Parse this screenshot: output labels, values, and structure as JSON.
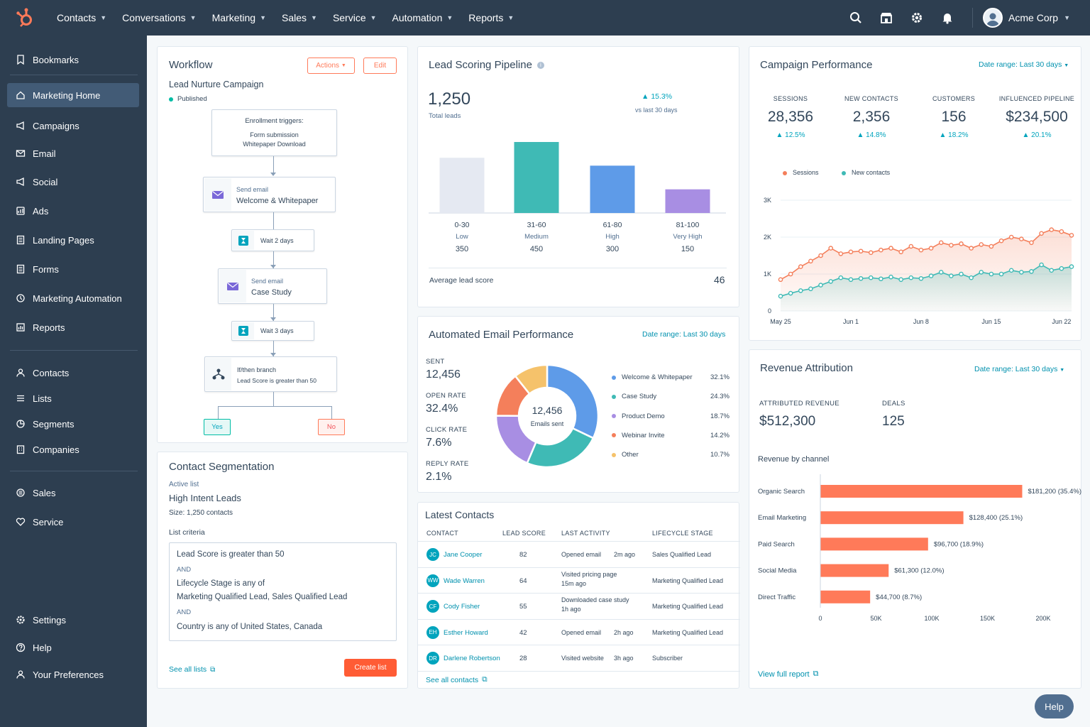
{
  "nav": {
    "items": [
      "Contacts",
      "Conversations",
      "Marketing",
      "Sales",
      "Service",
      "Automation",
      "Reports"
    ],
    "account": "Acme Corp",
    "icons": [
      "search-icon",
      "marketplace-icon",
      "settings-gear-icon",
      "notifications-bell-icon"
    ]
  },
  "sidebar": {
    "bookmarks": "Bookmarks",
    "marketing_items": [
      "Marketing Home",
      "Campaigns",
      "Email",
      "Social",
      "Ads",
      "Landing Pages",
      "Forms",
      "Marketing Automation",
      "Reports"
    ],
    "crm_items": [
      "Contacts",
      "Lists",
      "Segments",
      "Companies"
    ],
    "hub_items": [
      "Sales",
      "Service"
    ],
    "bottom_items": [
      "Settings",
      "Help",
      "Your Preferences"
    ]
  },
  "workflow": {
    "title": "Workflow",
    "actions_label": "Actions",
    "edit_label": "Edit",
    "name": "Lead Nurture Campaign",
    "status": "Published",
    "trigger_title": "Enrollment triggers:",
    "trigger_line1": "Form submission",
    "trigger_line2": "Whitepaper Download",
    "step1_type": "Send email",
    "step1_name": "Welcome & Whitepaper",
    "wait1": "Wait 2 days",
    "step2_type": "Send email",
    "step2_name": "Case Study",
    "wait2": "Wait 3 days",
    "branch_title": "If/then branch",
    "branch_desc": "Lead Score is greater than 50",
    "yes": "Yes",
    "no": "No"
  },
  "segmentation": {
    "title": "Contact Segmentation",
    "active_label": "Active list",
    "list_name": "High Intent Leads",
    "size": "Size: 1,250 contacts",
    "criteria_label": "List criteria",
    "c1": "Lead Score is greater than 50",
    "and1": "AND",
    "c2a": "Lifecycle Stage is any of",
    "c2b": "Marketing Qualified Lead, Sales Qualified Lead",
    "and2": "AND",
    "c3": "Country is any of United States, Canada",
    "see_all": "See all lists",
    "create": "Create list"
  },
  "scoring": {
    "title": "Lead Scoring Pipeline",
    "total": "1,250",
    "total_label": "Total leads",
    "delta": "15.3%",
    "delta_label": "vs last 30 days",
    "avg_label": "Average lead score",
    "avg_value": "46",
    "colors": [
      "#e5e9f2",
      "#3fbab5",
      "#5e9be8",
      "#a88ee3"
    ]
  },
  "chart_data": [
    {
      "type": "bar",
      "categories": [
        "0-30",
        "31-60",
        "61-80",
        "81-100"
      ],
      "sublabels": [
        "Low",
        "Medium",
        "High",
        "Very High"
      ],
      "values": [
        350,
        450,
        300,
        150
      ],
      "title": "Lead Scoring Pipeline"
    },
    {
      "type": "pie",
      "title": "Automated Email Performance",
      "center_value": "12,456",
      "center_label": "Emails sent",
      "labels": [
        "Welcome & Whitepaper",
        "Case Study",
        "Product Demo",
        "Webinar Invite",
        "Other"
      ],
      "values": [
        32.1,
        24.3,
        18.7,
        14.2,
        10.7
      ],
      "value_labels": [
        "32.1%",
        "24.3%",
        "18.7%",
        "14.2%",
        "10.7%"
      ],
      "colors": [
        "#5e9be8",
        "#3fbab5",
        "#a88ee3",
        "#f47f5b",
        "#f5c26b"
      ]
    },
    {
      "type": "area",
      "title": "Campaign Performance",
      "x_ticks": [
        "May 25",
        "Jun 1",
        "Jun 8",
        "Jun 15",
        "Jun 22"
      ],
      "y_ticks": [
        "3K",
        "2K",
        "1K",
        "0"
      ],
      "ylim": [
        0,
        3000
      ],
      "series": [
        {
          "name": "Sessions",
          "color": "#f47f5b",
          "values": [
            850,
            1000,
            1200,
            1350,
            1500,
            1700,
            1550,
            1600,
            1620,
            1580,
            1650,
            1700,
            1600,
            1750,
            1650,
            1700,
            1850,
            1780,
            1820,
            1700,
            1800,
            1750,
            1900,
            2000,
            1950,
            1850,
            2100,
            2200,
            2150,
            2050
          ]
        },
        {
          "name": "New contacts",
          "color": "#3fbab5",
          "values": [
            400,
            480,
            550,
            600,
            700,
            800,
            900,
            850,
            880,
            900,
            870,
            920,
            850,
            900,
            880,
            950,
            1050,
            950,
            1000,
            900,
            1050,
            1000,
            1000,
            1100,
            1050,
            1070,
            1250,
            1100,
            1150,
            1200
          ]
        }
      ]
    },
    {
      "type": "bar",
      "title": "Revenue by channel",
      "categories": [
        "Organic Search",
        "Email Marketing",
        "Paid Search",
        "Social Media",
        "Direct Traffic"
      ],
      "values": [
        181200,
        128400,
        96700,
        61300,
        44700
      ],
      "value_labels": [
        "$181,200 (35.4%)",
        "$128,400 (25.1%)",
        "$96,700 (18.9%)",
        "$61,300 (12.0%)",
        "$44,700 (8.7%)"
      ],
      "x_ticks": [
        "0",
        "50K",
        "100K",
        "150K",
        "200K"
      ],
      "xlim": [
        0,
        200000
      ],
      "color": "#ff7a59"
    }
  ],
  "email_perf": {
    "title": "Automated Email Performance",
    "date_range": "Date range: Last 30 days",
    "stats": [
      {
        "label": "SENT",
        "value": "12,456"
      },
      {
        "label": "OPEN RATE",
        "value": "32.4%"
      },
      {
        "label": "CLICK RATE",
        "value": "7.6%"
      },
      {
        "label": "REPLY RATE",
        "value": "2.1%"
      }
    ]
  },
  "contacts": {
    "title": "Latest Contacts",
    "headers": [
      "CONTACT",
      "LEAD SCORE",
      "LAST ACTIVITY",
      "LIFECYCLE STAGE"
    ],
    "rows": [
      {
        "initials": "JC",
        "name": "Jane Cooper",
        "score": "82",
        "activity": "Opened email",
        "ago": "2m ago",
        "stage": "Sales Qualified Lead"
      },
      {
        "initials": "WW",
        "name": "Wade Warren",
        "score": "64",
        "activity": "Visited pricing page",
        "ago": "15m ago",
        "stage": "Marketing Qualified Lead"
      },
      {
        "initials": "CF",
        "name": "Cody Fisher",
        "score": "55",
        "activity": "Downloaded case study",
        "ago": "1h ago",
        "stage": "Marketing Qualified Lead"
      },
      {
        "initials": "EH",
        "name": "Esther Howard",
        "score": "42",
        "activity": "Opened email",
        "ago": "2h ago",
        "stage": "Marketing Qualified Lead"
      },
      {
        "initials": "DR",
        "name": "Darlene Robertson",
        "score": "28",
        "activity": "Visited website",
        "ago": "3h ago",
        "stage": "Subscriber"
      }
    ],
    "see_all": "See all contacts"
  },
  "campaign": {
    "title": "Campaign Performance",
    "date_range": "Date range: Last 30 days",
    "kpis": [
      {
        "label": "SESSIONS",
        "value": "28,356",
        "delta": "12.5%"
      },
      {
        "label": "NEW CONTACTS",
        "value": "2,356",
        "delta": "14.8%"
      },
      {
        "label": "CUSTOMERS",
        "value": "156",
        "delta": "18.2%"
      },
      {
        "label": "INFLUENCED PIPELINE",
        "value": "$234,500",
        "delta": "20.1%"
      }
    ],
    "legend": [
      "Sessions",
      "New contacts"
    ]
  },
  "revenue": {
    "title": "Revenue Attribution",
    "date_range": "Date range: Last 30 days",
    "attr_label": "ATTRIBUTED REVENUE",
    "attr_value": "$512,300",
    "deals_label": "DEALS",
    "deals_value": "125",
    "by_channel": "Revenue by channel",
    "full_report": "View full report"
  },
  "help_button": "Help"
}
